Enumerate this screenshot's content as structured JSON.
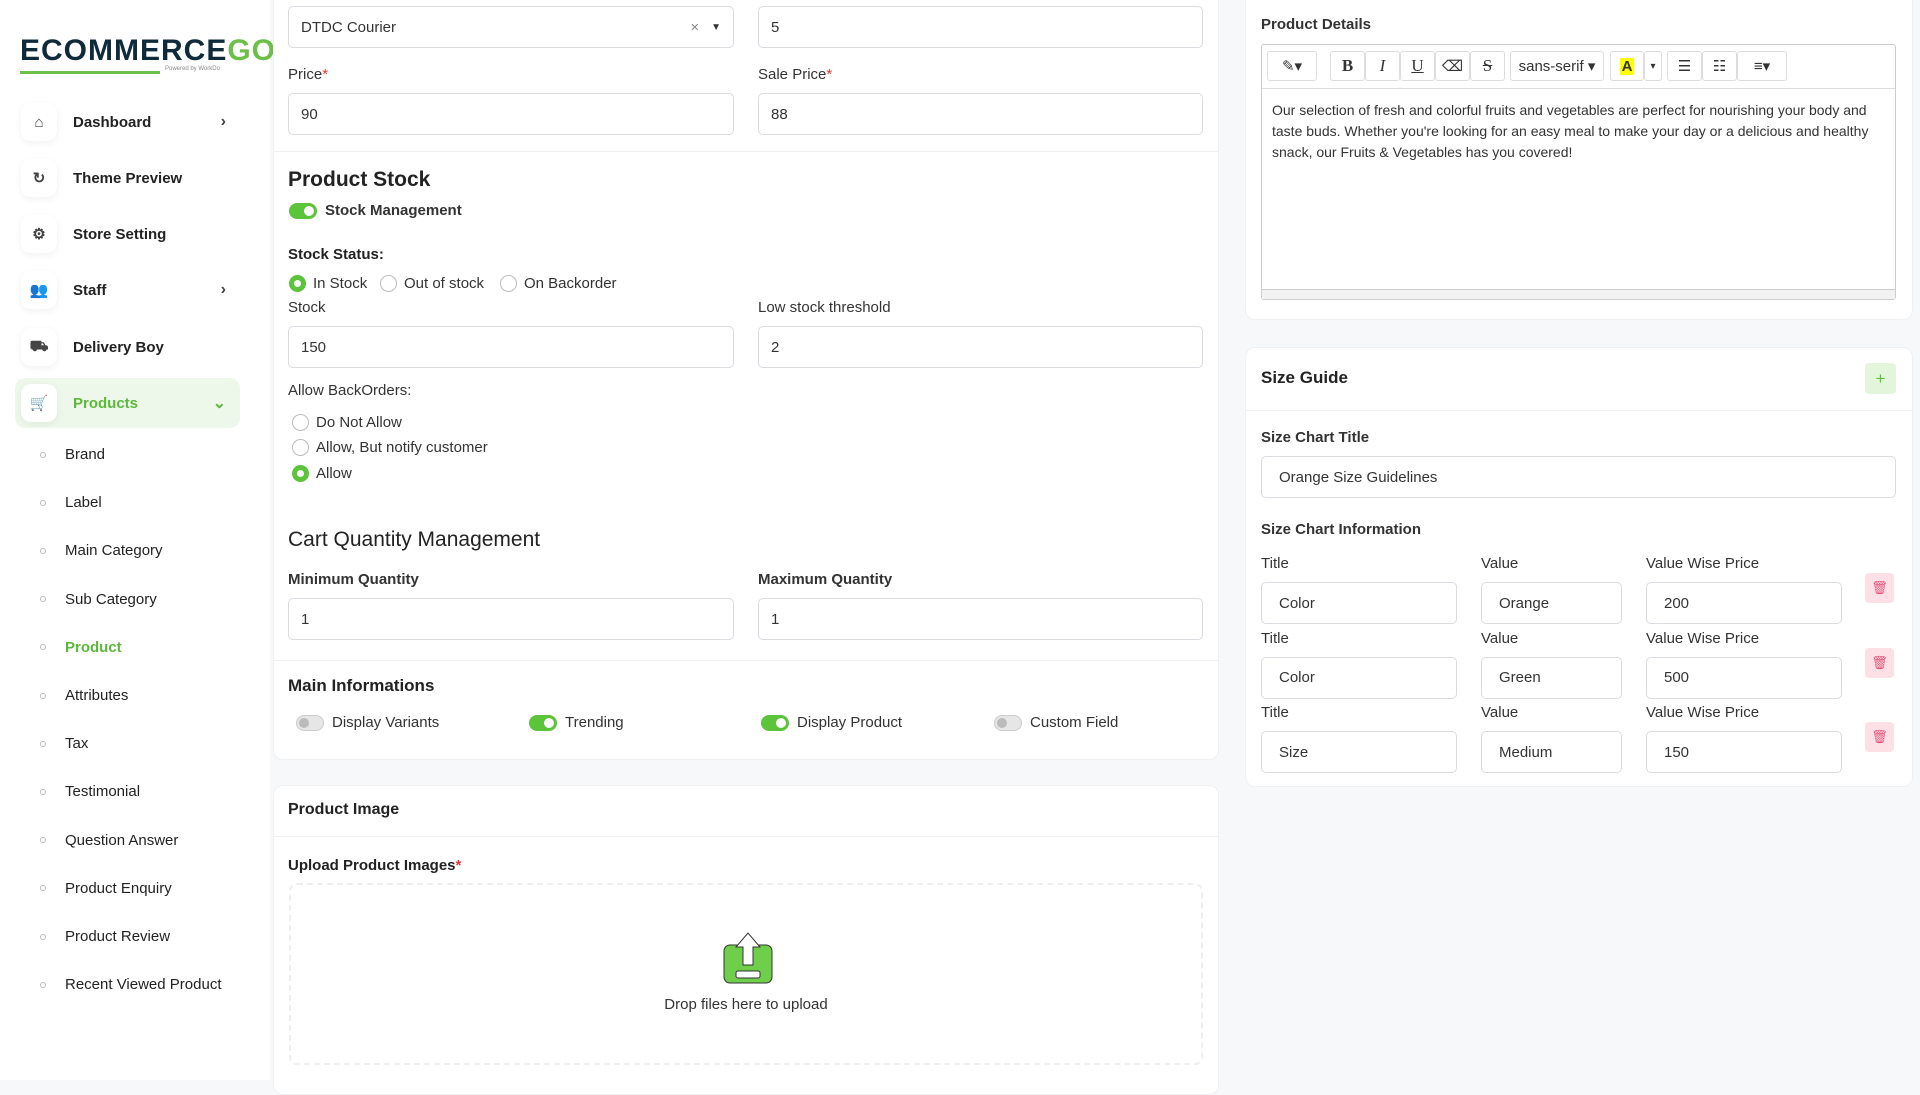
{
  "logo": {
    "text_main": "ECOMMERCE",
    "text_accent": "GO",
    "tagline": "Powered by WorkDo"
  },
  "sidebar": {
    "items": [
      {
        "label": "Dashboard",
        "icon": "home-icon",
        "chevron": true
      },
      {
        "label": "Theme Preview",
        "icon": "refresh-icon",
        "chevron": false
      },
      {
        "label": "Store Setting",
        "icon": "gear-icon",
        "chevron": false
      },
      {
        "label": "Staff",
        "icon": "users-icon",
        "chevron": true
      },
      {
        "label": "Delivery Boy",
        "icon": "truck-icon",
        "chevron": false
      },
      {
        "label": "Products",
        "icon": "cart-icon",
        "chevron": true,
        "active": true
      }
    ],
    "sub_items": [
      "Brand",
      "Label",
      "Main Category",
      "Sub Category",
      "Product",
      "Attributes",
      "Tax",
      "Testimonial",
      "Question Answer",
      "Product Enquiry",
      "Product Review",
      "Recent Viewed Product"
    ],
    "active_sub": "Product"
  },
  "shipping": {
    "courier": "DTDC Courier",
    "clear": "×",
    "other_value": "5"
  },
  "pricing": {
    "price_label": "Price",
    "price": "90",
    "sale_label": "Sale Price",
    "sale": "88",
    "required": "*"
  },
  "stock": {
    "title": "Product Stock",
    "management_label": "Stock Management",
    "management_on": true,
    "status_label": "Stock Status:",
    "statuses": [
      "In Stock",
      "Out of stock",
      "On Backorder"
    ],
    "selected_status": "In Stock",
    "stock_label": "Stock",
    "stock": "150",
    "threshold_label": "Low stock threshold",
    "threshold": "2",
    "backorders_label": "Allow BackOrders:",
    "backorders": [
      "Do Not Allow",
      "Allow, But notify customer",
      "Allow"
    ],
    "selected_backorder": "Allow"
  },
  "cart": {
    "title": "Cart Quantity Management",
    "min_label": "Minimum Quantity",
    "min": "1",
    "max_label": "Maximum Quantity",
    "max": "1"
  },
  "main_info": {
    "title": "Main Informations",
    "toggles": [
      {
        "label": "Display Variants",
        "on": false
      },
      {
        "label": "Trending",
        "on": true
      },
      {
        "label": "Display Product",
        "on": true
      },
      {
        "label": "Custom Field",
        "on": false
      }
    ]
  },
  "product_image": {
    "title": "Product Image",
    "upload_label": "Upload Product Images",
    "drop_text": "Drop files here to upload"
  },
  "details": {
    "label": "Product Details",
    "font": "sans-serif",
    "text": "Our selection of fresh and colorful fruits and vegetables are perfect for nourishing your body and taste buds. Whether you're looking for an easy meal to make your day or a delicious and healthy snack, our Fruits & Vegetables has you covered!"
  },
  "size_guide": {
    "title": "Size Guide",
    "add": "+",
    "chart_title_label": "Size Chart Title",
    "chart_title": "Orange Size Guidelines",
    "info_label": "Size Chart Information",
    "col_title": "Title",
    "col_value": "Value",
    "col_price": "Value Wise Price",
    "rows": [
      {
        "title": "Color",
        "value": "Orange",
        "price": "200"
      },
      {
        "title": "Color",
        "value": "Green",
        "price": "500"
      },
      {
        "title": "Size",
        "value": "Medium",
        "price": "150"
      }
    ]
  },
  "colors": {
    "accent": "#5cc43a",
    "danger": "#e5557a"
  }
}
